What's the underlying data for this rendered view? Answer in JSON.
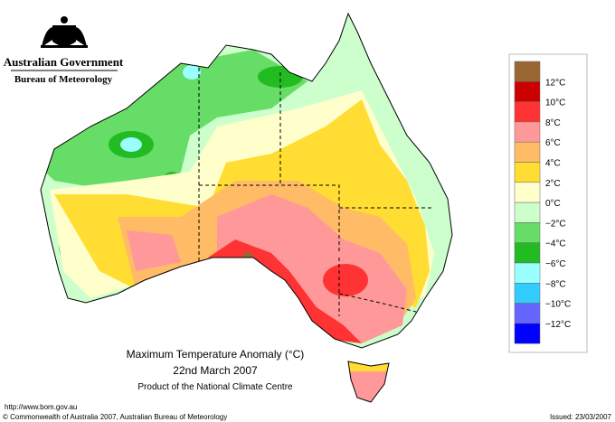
{
  "header": {
    "government": "Australian Government",
    "bureau": "Bureau of Meteorology"
  },
  "map": {
    "title": "Maximum Temperature Anomaly (°C)",
    "date": "22nd March 2007",
    "product": "Product of the National Climate Centre"
  },
  "legend": {
    "colors": [
      "#996633",
      "#cc0000",
      "#ff3333",
      "#ff9999",
      "#ffbb66",
      "#ffdd33",
      "#ffffcc",
      "#ccffcc",
      "#66dd66",
      "#22bb22",
      "#99ffff",
      "#33ccff",
      "#6666ff",
      "#0000ff"
    ],
    "labels": [
      "12°C",
      "10°C",
      "8°C",
      "6°C",
      "4°C",
      "2°C",
      "0°C",
      "−2°C",
      "−4°C",
      "−6°C",
      "−8°C",
      "−10°C",
      "−12°C"
    ]
  },
  "footer": {
    "url": "http://www.bom.gov.au",
    "copyright": "© Commonwealth of Australia 2007, Australian Bureau of Meteorology",
    "issued": "Issued: 23/03/2007"
  }
}
